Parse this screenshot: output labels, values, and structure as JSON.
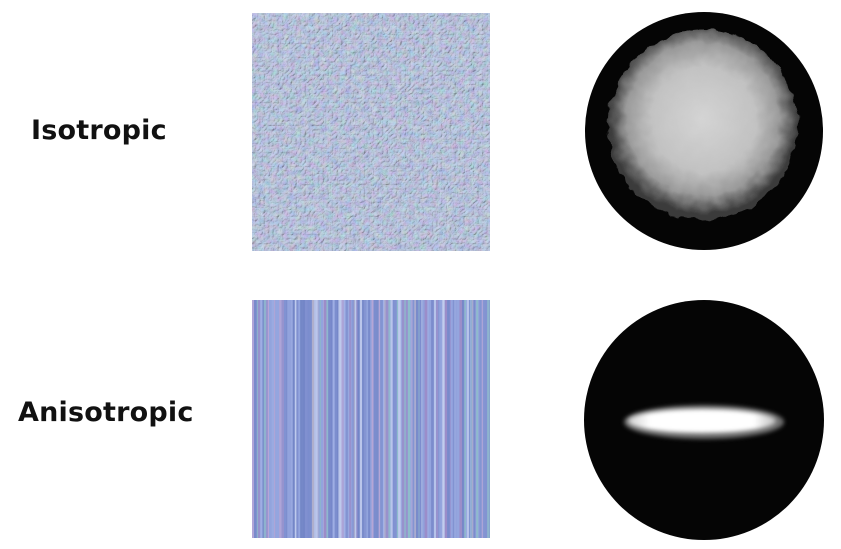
{
  "rows": [
    {
      "label": "Isotropic",
      "texture_icon": "isotropic-bumpy-normal-map",
      "distribution_icon": "round-highlight-lobe"
    },
    {
      "label": "Anisotropic",
      "texture_icon": "vertical-streak-normal-map",
      "distribution_icon": "horizontal-stretched-highlight-lobe"
    }
  ],
  "colors": {
    "texture_base": "#8f9fd6",
    "texture_shade": "#6a7ec0",
    "texture_tint": "#c49ab8",
    "disc_background": "#050505",
    "iso_highlight": "#cfcfcf",
    "aniso_highlight": "#ffffff"
  }
}
